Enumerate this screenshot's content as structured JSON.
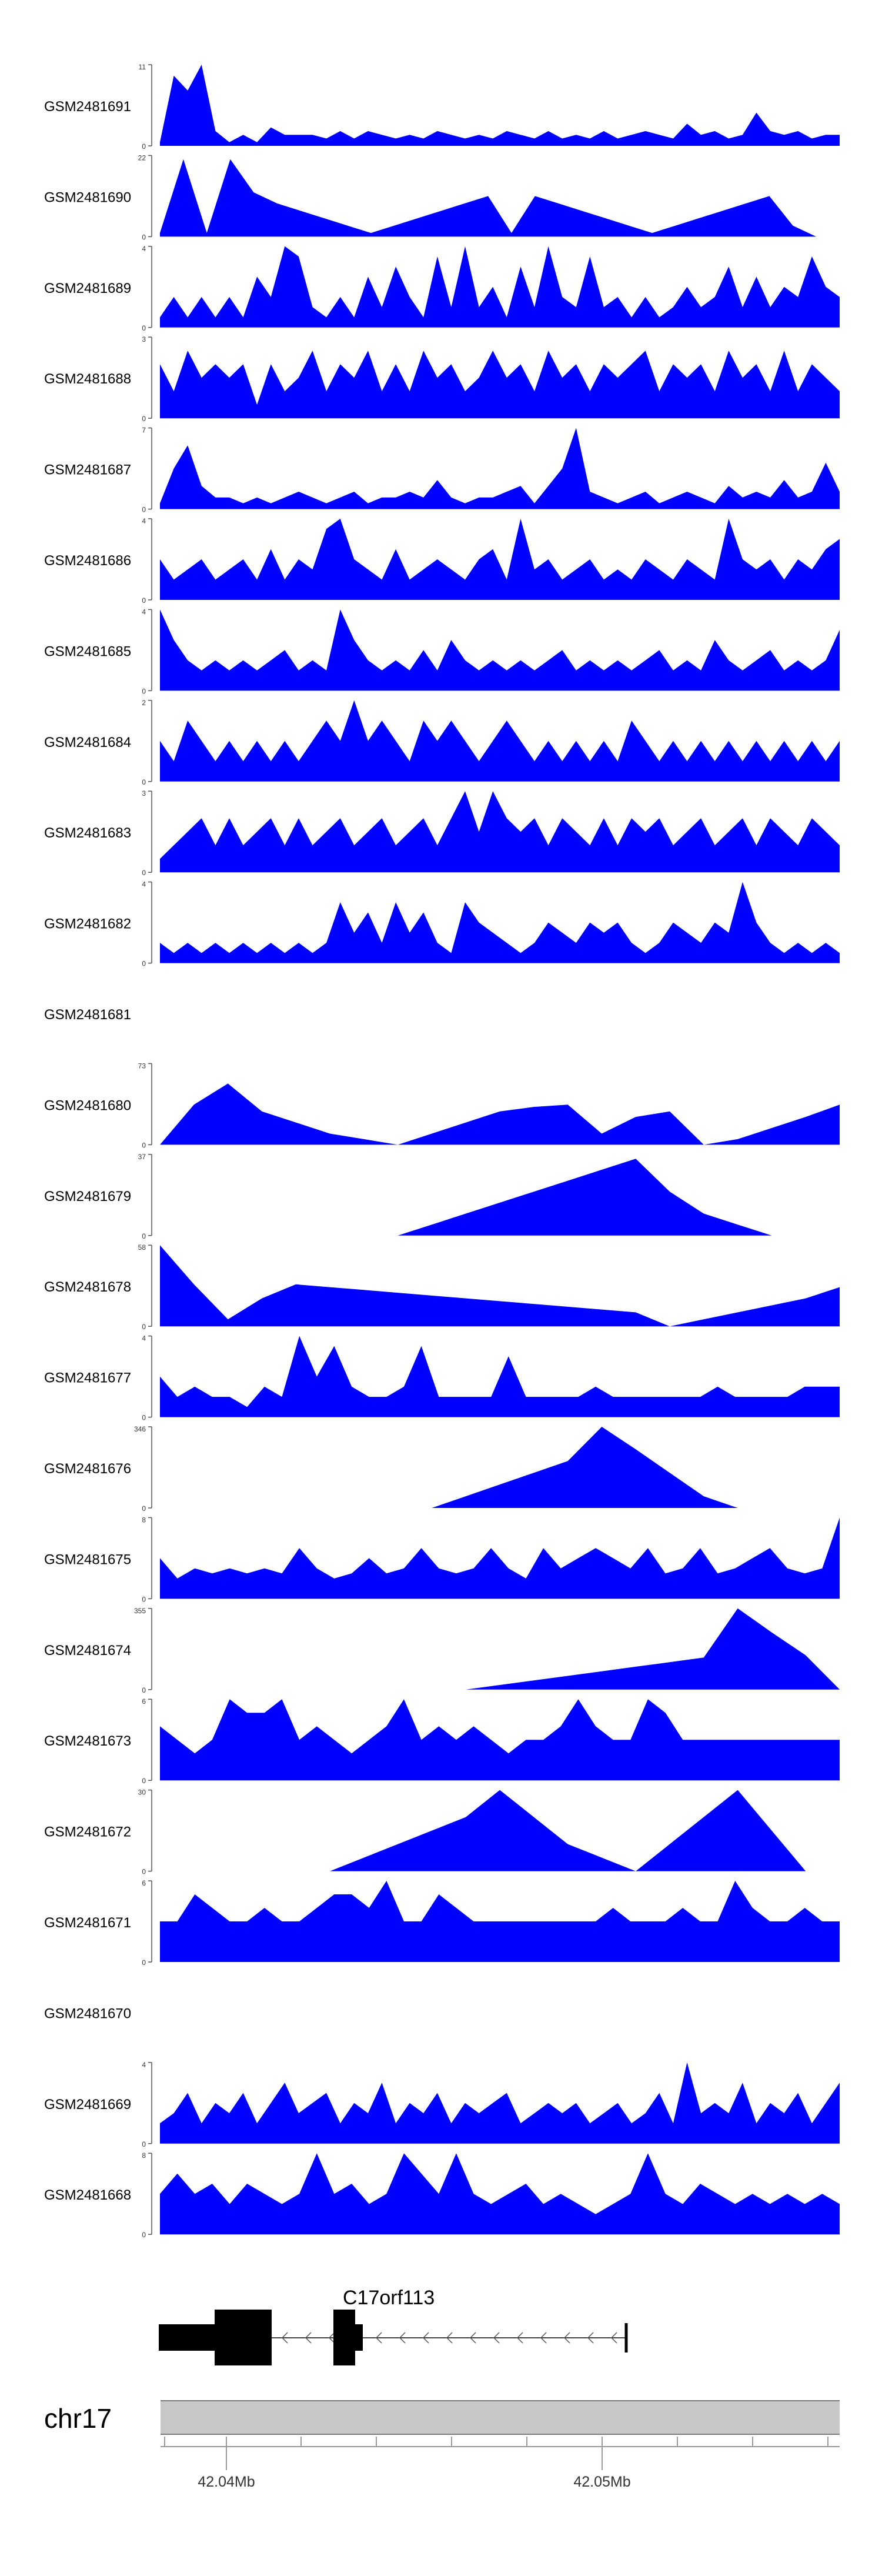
{
  "chart_data": {
    "type": "area",
    "tracks": [
      {
        "name": "GSM2481691",
        "ymax": 11,
        "ymin": 0,
        "values": [
          0.5,
          9.5,
          7.5,
          11,
          2,
          0.5,
          1.5,
          0.5,
          2.5,
          1.5,
          1.5,
          1.5,
          1,
          2,
          1,
          2,
          1.5,
          1,
          1.5,
          1,
          2,
          1.5,
          1,
          1.5,
          1,
          2,
          1.5,
          1,
          2,
          1,
          1.5,
          1,
          2,
          1,
          1.5,
          2,
          1.5,
          1,
          3,
          1.5,
          2,
          1,
          1.5,
          4.5,
          2,
          1.5,
          2,
          1,
          1.5,
          1.5
        ]
      },
      {
        "name": "GSM2481690",
        "ymax": 22,
        "ymin": 0,
        "values": [
          1,
          21,
          1,
          21,
          12,
          9,
          7,
          5,
          3,
          1,
          3,
          5,
          7,
          9,
          11,
          1,
          11,
          9,
          7,
          5,
          3,
          1,
          3,
          5,
          7,
          9,
          11,
          3,
          0,
          0
        ]
      },
      {
        "name": "GSM2481689",
        "ymax": 4,
        "ymin": 0,
        "values": [
          0.5,
          1.5,
          0.5,
          1.5,
          0.5,
          1.5,
          0.5,
          2.5,
          1.5,
          4,
          3.5,
          1,
          0.5,
          1.5,
          0.5,
          2.5,
          1,
          3,
          1.5,
          0.5,
          3.5,
          1,
          4,
          1,
          2,
          0.5,
          3,
          1,
          4,
          1.5,
          1,
          3.5,
          1,
          1.5,
          0.5,
          1.5,
          0.5,
          1,
          2,
          1,
          1.5,
          3,
          1,
          2.5,
          1,
          2,
          1.5,
          3.5,
          2,
          1.5
        ]
      },
      {
        "name": "GSM2481688",
        "ymax": 3,
        "ymin": 0,
        "values": [
          2,
          1,
          2.5,
          1.5,
          2,
          1.5,
          2,
          0.5,
          2,
          1,
          1.5,
          2.5,
          1,
          2,
          1.5,
          2.5,
          1,
          2,
          1,
          2.5,
          1.5,
          2,
          1,
          1.5,
          2.5,
          1.5,
          2,
          1,
          2.5,
          1.5,
          2,
          1,
          2,
          1.5,
          2,
          2.5,
          1,
          2,
          1.5,
          2,
          1,
          2.5,
          1.5,
          2,
          1,
          2.5,
          1,
          2,
          1.5,
          1
        ]
      },
      {
        "name": "GSM2481687",
        "ymax": 7,
        "ymin": 0,
        "values": [
          0.5,
          3.5,
          5.5,
          2,
          1,
          1,
          0.5,
          1,
          0.5,
          1,
          1.5,
          1,
          0.5,
          1,
          1.5,
          0.5,
          1,
          1,
          1.5,
          1,
          2.5,
          1,
          0.5,
          1,
          1,
          1.5,
          2,
          0.5,
          2,
          3.5,
          7,
          1.5,
          1,
          0.5,
          1,
          1.5,
          0.5,
          1,
          1.5,
          1,
          0.5,
          2,
          1,
          1.5,
          1,
          2.5,
          1,
          1.5,
          4,
          1.5
        ]
      },
      {
        "name": "GSM2481686",
        "ymax": 4,
        "ymin": 0,
        "values": [
          2,
          1,
          1.5,
          2,
          1,
          1.5,
          2,
          1,
          2.5,
          1,
          2,
          1.5,
          3.5,
          4,
          2,
          1.5,
          1,
          2.5,
          1,
          1.5,
          2,
          1.5,
          1,
          2,
          2.5,
          1,
          4,
          1.5,
          2,
          1,
          1.5,
          2,
          1,
          1.5,
          1,
          2,
          1.5,
          1,
          2,
          1.5,
          1,
          4,
          2,
          1.5,
          2,
          1,
          2,
          1.5,
          2.5,
          3
        ]
      },
      {
        "name": "GSM2481685",
        "ymax": 4,
        "ymin": 0,
        "values": [
          4,
          2.5,
          1.5,
          1,
          1.5,
          1,
          1.5,
          1,
          1.5,
          2,
          1,
          1.5,
          1,
          4,
          2.5,
          1.5,
          1,
          1.5,
          1,
          2,
          1,
          2.5,
          1.5,
          1,
          1.5,
          1,
          1.5,
          1,
          1.5,
          2,
          1,
          1.5,
          1,
          1.5,
          1,
          1.5,
          2,
          1,
          1.5,
          1,
          2.5,
          1.5,
          1,
          1.5,
          2,
          1,
          1.5,
          1,
          1.5,
          3
        ]
      },
      {
        "name": "GSM2481684",
        "ymax": 2,
        "ymin": 0,
        "values": [
          1,
          0.5,
          1.5,
          1,
          0.5,
          1,
          0.5,
          1,
          0.5,
          1,
          0.5,
          1,
          1.5,
          1,
          2,
          1,
          1.5,
          1,
          0.5,
          1.5,
          1,
          1.5,
          1,
          0.5,
          1,
          1.5,
          1,
          0.5,
          1,
          0.5,
          1,
          0.5,
          1,
          0.5,
          1.5,
          1,
          0.5,
          1,
          0.5,
          1,
          0.5,
          1,
          0.5,
          1,
          0.5,
          1,
          0.5,
          1,
          0.5,
          1
        ]
      },
      {
        "name": "GSM2481683",
        "ymax": 3,
        "ymin": 0,
        "values": [
          0.5,
          1,
          1.5,
          2,
          1,
          2,
          1,
          1.5,
          2,
          1,
          2,
          1,
          1.5,
          2,
          1,
          1.5,
          2,
          1,
          1.5,
          2,
          1,
          2,
          3,
          1.5,
          3,
          2,
          1.5,
          2,
          1,
          2,
          1.5,
          1,
          2,
          1,
          2,
          1.5,
          2,
          1,
          1.5,
          2,
          1,
          1.5,
          2,
          1,
          2,
          1.5,
          1,
          2,
          1.5,
          1
        ]
      },
      {
        "name": "GSM2481682",
        "ymax": 4,
        "ymin": 0,
        "values": [
          1,
          0.5,
          1,
          0.5,
          1,
          0.5,
          1,
          0.5,
          1,
          0.5,
          1,
          0.5,
          1,
          3,
          1.5,
          2.5,
          1,
          3,
          1.5,
          2.5,
          1,
          0.5,
          3,
          2,
          1.5,
          1,
          0.5,
          1,
          2,
          1.5,
          1,
          2,
          1.5,
          2,
          1,
          0.5,
          1,
          2,
          1.5,
          1,
          2,
          1.5,
          4,
          2,
          1,
          0.5,
          1,
          0.5,
          1,
          0.5
        ]
      },
      {
        "name": "GSM2481681",
        "ymax": null,
        "ymin": null,
        "values": []
      },
      {
        "name": "GSM2481680",
        "ymax": 73,
        "ymin": 0,
        "values": [
          0,
          36,
          55,
          30,
          20,
          10,
          5,
          0,
          10,
          20,
          30,
          34,
          36,
          10,
          25,
          30,
          0,
          5,
          15,
          25,
          36
        ]
      },
      {
        "name": "GSM2481679",
        "ymax": 37,
        "ymin": 0,
        "values": [
          0,
          0,
          0,
          0,
          0,
          0,
          0,
          0,
          5,
          10,
          15,
          20,
          25,
          30,
          35,
          20,
          10,
          5,
          0,
          0,
          0
        ]
      },
      {
        "name": "GSM2481678",
        "ymax": 58,
        "ymin": 0,
        "values": [
          58,
          30,
          5,
          20,
          30,
          28,
          26,
          24,
          22,
          20,
          18,
          16,
          14,
          12,
          10,
          0,
          5,
          10,
          15,
          20,
          28
        ]
      },
      {
        "name": "GSM2481677",
        "ymax": 4,
        "ymin": 0,
        "values": [
          2,
          1,
          1.5,
          1,
          1,
          0.5,
          1.5,
          1,
          4,
          2,
          3.5,
          1.5,
          1,
          1,
          1.5,
          3.5,
          1,
          1,
          1,
          1,
          3,
          1,
          1,
          1,
          1,
          1.5,
          1,
          1,
          1,
          1,
          1,
          1,
          1.5,
          1,
          1,
          1,
          1,
          1.5,
          1.5,
          1.5
        ]
      },
      {
        "name": "GSM2481676",
        "ymax": 346,
        "ymin": 0,
        "values": [
          0,
          0,
          0,
          0,
          0,
          0,
          0,
          0,
          0,
          50,
          100,
          150,
          200,
          346,
          250,
          150,
          50,
          0,
          0,
          0,
          0
        ]
      },
      {
        "name": "GSM2481675",
        "ymax": 8,
        "ymin": 0,
        "values": [
          4,
          2,
          3,
          2.5,
          3,
          2.5,
          3,
          2.5,
          5,
          3,
          2,
          2.5,
          4,
          2.5,
          3,
          5,
          3,
          2.5,
          3,
          5,
          3,
          2,
          5,
          3,
          4,
          5,
          4,
          3,
          5,
          2.5,
          3,
          5,
          2.5,
          3,
          4,
          5,
          3,
          2.5,
          3,
          8
        ]
      },
      {
        "name": "GSM2481674",
        "ymax": 355,
        "ymin": 0,
        "values": [
          0,
          0,
          0,
          0,
          0,
          0,
          0,
          0,
          0,
          0,
          20,
          40,
          60,
          80,
          100,
          120,
          140,
          355,
          250,
          150,
          0
        ]
      },
      {
        "name": "GSM2481673",
        "ymax": 6,
        "ymin": 0,
        "values": [
          4,
          3,
          2,
          3,
          6,
          5,
          5,
          6,
          3,
          4,
          3,
          2,
          3,
          4,
          6,
          3,
          4,
          3,
          4,
          3,
          2,
          3,
          3,
          4,
          6,
          4,
          3,
          3,
          6,
          5,
          3,
          3,
          3,
          3,
          3,
          3,
          3,
          3,
          3,
          3
        ]
      },
      {
        "name": "GSM2481672",
        "ymax": 30,
        "ymin": 0,
        "values": [
          0,
          0,
          0,
          0,
          0,
          0,
          5,
          10,
          15,
          20,
          30,
          20,
          10,
          5,
          0,
          10,
          20,
          30,
          15,
          0,
          0
        ]
      },
      {
        "name": "GSM2481671",
        "ymax": 6,
        "ymin": 0,
        "values": [
          3,
          3,
          5,
          4,
          3,
          3,
          4,
          3,
          3,
          4,
          5,
          5,
          4,
          6,
          3,
          3,
          5,
          4,
          3,
          3,
          3,
          3,
          3,
          3,
          3,
          3,
          4,
          3,
          3,
          3,
          4,
          3,
          3,
          6,
          4,
          3,
          3,
          4,
          3,
          3
        ]
      },
      {
        "name": "GSM2481670",
        "ymax": null,
        "ymin": null,
        "values": []
      },
      {
        "name": "GSM2481669",
        "ymax": 4,
        "ymin": 0,
        "values": [
          1,
          1.5,
          2.5,
          1,
          2,
          1.5,
          2.5,
          1,
          2,
          3,
          1.5,
          2,
          2.5,
          1,
          2,
          1.5,
          3,
          1,
          2,
          1.5,
          2.5,
          1,
          2,
          1.5,
          2,
          2.5,
          1,
          1.5,
          2,
          1.5,
          2,
          1,
          1.5,
          2,
          1,
          1.5,
          2.5,
          1,
          4,
          1.5,
          2,
          1.5,
          3,
          1,
          2,
          1.5,
          2.5,
          1,
          2,
          3
        ]
      },
      {
        "name": "GSM2481668",
        "ymax": 8,
        "ymin": 0,
        "values": [
          4,
          6,
          4,
          5,
          3,
          5,
          4,
          3,
          4,
          8,
          4,
          5,
          3,
          4,
          8,
          6,
          4,
          8,
          4,
          3,
          4,
          5,
          3,
          4,
          3,
          2,
          3,
          4,
          8,
          4,
          3,
          5,
          4,
          3,
          4,
          3,
          4,
          3,
          4,
          3
        ]
      }
    ],
    "gene": {
      "label": "C17orf113"
    },
    "chromosome": {
      "label": "chr17"
    },
    "xaxis": {
      "ticks": [
        "42.04Mb",
        "42.05Mb"
      ]
    },
    "colors": {
      "signal": "#0000ff",
      "gene": "#000000",
      "ideogram": "#c8c8c8"
    }
  }
}
